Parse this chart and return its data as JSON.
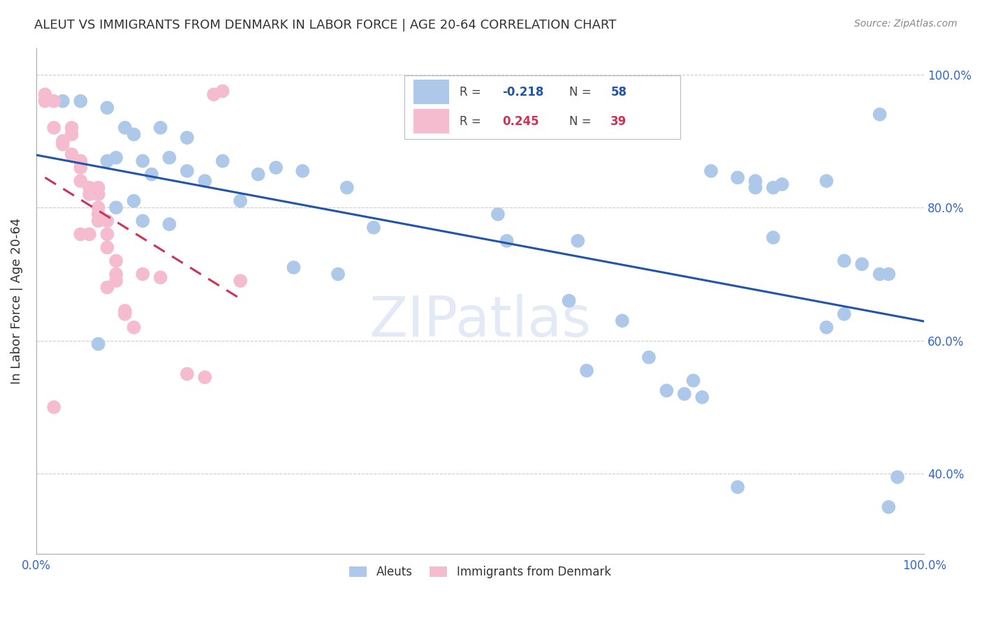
{
  "title": "ALEUT VS IMMIGRANTS FROM DENMARK IN LABOR FORCE | AGE 20-64 CORRELATION CHART",
  "source": "Source: ZipAtlas.com",
  "ylabel": "In Labor Force | Age 20-64",
  "xlim": [
    0.0,
    1.0
  ],
  "ylim": [
    0.28,
    1.04
  ],
  "ytick_positions": [
    0.4,
    0.6,
    0.8,
    1.0
  ],
  "yticklabels_right": [
    "40.0%",
    "60.0%",
    "80.0%",
    "100.0%"
  ],
  "aleuts_R": "-0.218",
  "aleuts_N": "58",
  "denmark_R": "0.245",
  "denmark_N": "39",
  "aleut_color": "#adc8e8",
  "denmark_color": "#f5bcd0",
  "trendline_aleut_color": "#2255aa",
  "trendline_denmark_color": "#cc3355",
  "background_color": "#ffffff",
  "aleuts_x": [
    0.03,
    0.05,
    0.08,
    0.1,
    0.14,
    0.17,
    0.05,
    0.08,
    0.11,
    0.13,
    0.09,
    0.12,
    0.15,
    0.17,
    0.21,
    0.11,
    0.19,
    0.23,
    0.27,
    0.12,
    0.15,
    0.25,
    0.3,
    0.35,
    0.38,
    0.52,
    0.53,
    0.61,
    0.66,
    0.73,
    0.74,
    0.81,
    0.83,
    0.84,
    0.89,
    0.91,
    0.89,
    0.91,
    0.93,
    0.95,
    0.96,
    0.97,
    0.96,
    0.95,
    0.69,
    0.71,
    0.76,
    0.79,
    0.81,
    0.83,
    0.29,
    0.34,
    0.62,
    0.75,
    0.79,
    0.6,
    0.07,
    0.09
  ],
  "aleuts_y": [
    0.96,
    0.96,
    0.95,
    0.92,
    0.92,
    0.905,
    0.87,
    0.87,
    0.91,
    0.85,
    0.875,
    0.87,
    0.875,
    0.855,
    0.87,
    0.81,
    0.84,
    0.81,
    0.86,
    0.78,
    0.775,
    0.85,
    0.855,
    0.83,
    0.77,
    0.79,
    0.75,
    0.75,
    0.63,
    0.52,
    0.54,
    0.84,
    0.83,
    0.835,
    0.84,
    0.64,
    0.62,
    0.72,
    0.715,
    0.7,
    0.7,
    0.395,
    0.35,
    0.94,
    0.575,
    0.525,
    0.855,
    0.845,
    0.83,
    0.755,
    0.71,
    0.7,
    0.555,
    0.515,
    0.38,
    0.66,
    0.595,
    0.8
  ],
  "denmark_x": [
    0.01,
    0.01,
    0.02,
    0.02,
    0.03,
    0.03,
    0.04,
    0.04,
    0.04,
    0.05,
    0.05,
    0.05,
    0.06,
    0.06,
    0.07,
    0.07,
    0.07,
    0.07,
    0.07,
    0.08,
    0.08,
    0.08,
    0.09,
    0.09,
    0.1,
    0.02,
    0.05,
    0.06,
    0.2,
    0.21,
    0.08,
    0.09,
    0.1,
    0.11,
    0.12,
    0.14,
    0.17,
    0.19,
    0.23
  ],
  "denmark_y": [
    0.97,
    0.96,
    0.96,
    0.92,
    0.9,
    0.895,
    0.92,
    0.91,
    0.88,
    0.87,
    0.86,
    0.84,
    0.83,
    0.82,
    0.83,
    0.82,
    0.8,
    0.79,
    0.78,
    0.78,
    0.76,
    0.74,
    0.72,
    0.7,
    0.645,
    0.5,
    0.76,
    0.76,
    0.97,
    0.975,
    0.68,
    0.69,
    0.64,
    0.62,
    0.7,
    0.695,
    0.55,
    0.545,
    0.69
  ]
}
